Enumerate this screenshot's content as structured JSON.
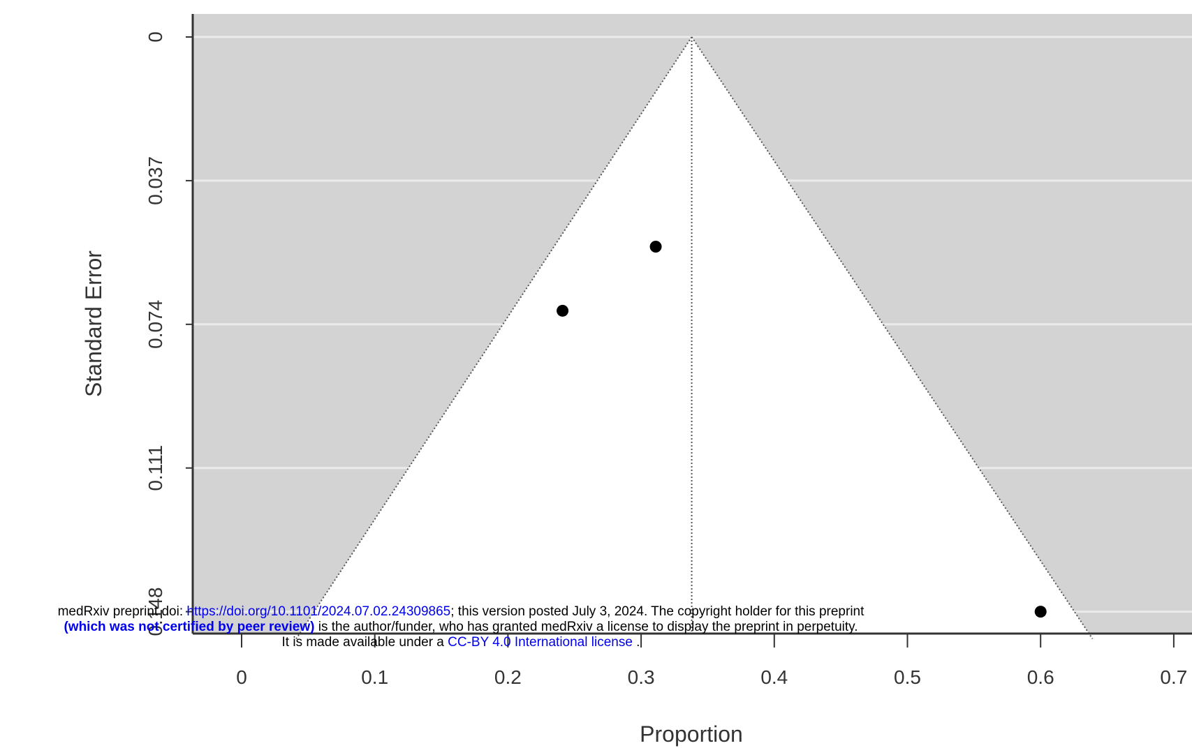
{
  "chart_data": {
    "type": "scatter",
    "title": "",
    "xlabel": "Proportion",
    "ylabel": "Standard Error",
    "xlim": [
      -0.04,
      0.71
    ],
    "ylim": [
      0,
      0.155
    ],
    "y_reversed": true,
    "x_ticks": [
      0,
      0.1,
      0.2,
      0.3,
      0.4,
      0.5,
      0.6,
      0.7
    ],
    "x_tick_labels": [
      "0",
      "0.1",
      "0.2",
      "0.3",
      "0.4",
      "0.5",
      "0.6",
      "0.7"
    ],
    "y_ticks": [
      0,
      0.037,
      0.074,
      0.111,
      0.148
    ],
    "y_tick_labels": [
      "0",
      "0.037",
      "0.074",
      "0.111",
      "0.148"
    ],
    "pooled_estimate": 0.338,
    "funnel_bottom_se": 0.155,
    "funnel_bottom_x": [
      0.041,
      0.639
    ],
    "points": [
      {
        "x": 0.311,
        "y": 0.054
      },
      {
        "x": 0.241,
        "y": 0.0705
      },
      {
        "x": 0.6,
        "y": 0.148
      }
    ],
    "grid": true,
    "colors": {
      "panel": "#d3d3d3",
      "funnel": "#ffffff",
      "grid": "#ebebeb",
      "point": "#000000"
    }
  },
  "notice": {
    "line1_pre": "medRxiv preprint doi: ",
    "doi_link": "https://doi.org/10.1101/2024.07.02.24309865",
    "line1_post": "; this version posted July 3, 2024. The copyright holder for this preprint",
    "line2_bold": "(which was not certified by peer review)",
    "line2_post": " is the author/funder, who has granted medRxiv a license to display the preprint in perpetuity.",
    "line3_pre": "It is made available under a ",
    "license_link": "CC-BY 4.0 International license",
    "line3_post": " ."
  }
}
